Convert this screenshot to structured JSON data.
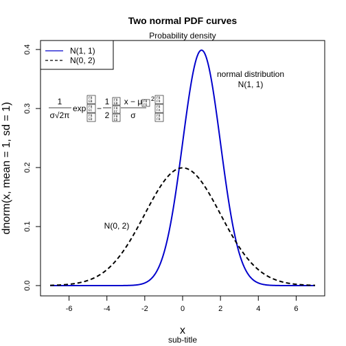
{
  "chart_data": {
    "type": "line",
    "title": "Two normal PDF curves",
    "subtitle": "Probability density",
    "sub_title_bottom": "sub-title",
    "xlabel": "x",
    "ylabel": "dnorm(x, mean = 1, sd = 1)",
    "xlim": [
      -7,
      7
    ],
    "ylim": [
      0,
      0.4
    ],
    "xticks": [
      -6,
      -4,
      -2,
      0,
      2,
      4,
      6
    ],
    "yticks": [
      0.0,
      0.1,
      0.2,
      0.3,
      0.4
    ],
    "ytick_labels": [
      "0.0",
      "0.1",
      "0.2",
      "0.3",
      "0.4"
    ],
    "x_domain": [
      -7,
      7
    ],
    "series": [
      {
        "name": "N(1, 1)",
        "mean": 1,
        "sd": 1,
        "color": "#0000CC",
        "dash": "solid",
        "lwd": 2
      },
      {
        "name": "N(0, 2)",
        "mean": 0,
        "sd": 2,
        "color": "#000000",
        "dash": "dashed",
        "lwd": 2
      }
    ],
    "legend": {
      "position": "top-left",
      "entries": [
        "N(1, 1)",
        "N(0, 2)"
      ]
    },
    "annotations": [
      {
        "line1": "normal distribution",
        "line2": "N(1, 1)"
      },
      {
        "text": "N(0, 2)"
      }
    ],
    "formula": {
      "num": "1",
      "den": "σ√2π",
      "exp": "exp",
      "minus": "−",
      "half_num": "1",
      "half_den": "2",
      "frac_num": "x − μ",
      "frac_den": "σ",
      "power": "2"
    }
  }
}
